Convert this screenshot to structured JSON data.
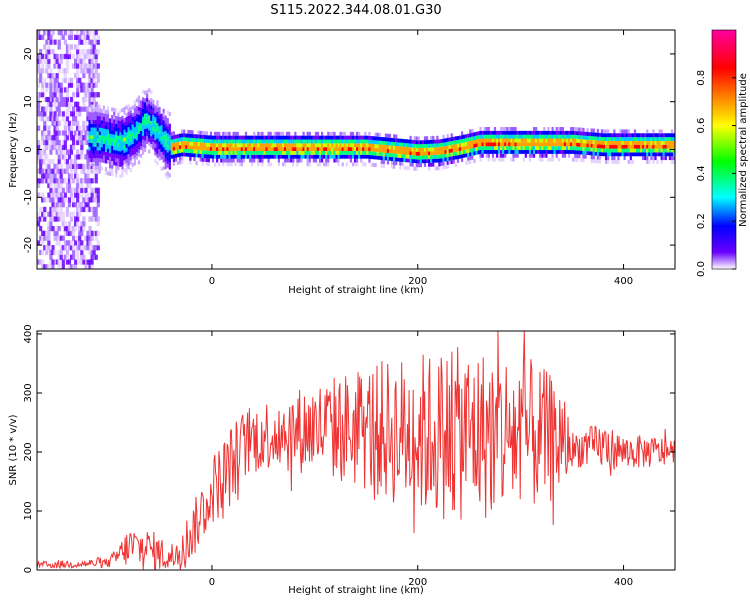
{
  "figure": {
    "title": "S115.2022.344.08.01.G30"
  },
  "chart_data": [
    {
      "type": "heatmap",
      "xlabel": "Height of straight line (km)",
      "ylabel": "Frequency (Hz)",
      "xlim": [
        -170,
        450
      ],
      "ylim": [
        -25,
        25
      ],
      "xticks": [
        0,
        200,
        400
      ],
      "yticks": [
        -20,
        -10,
        0,
        10,
        20
      ],
      "colorbar": {
        "label": "Normalized spectral amplitude",
        "range": [
          0,
          1
        ],
        "ticks": [
          "0.0",
          "0.2",
          "0.4",
          "0.6",
          "0.8"
        ]
      },
      "ridge": {
        "x": [
          -110,
          -90,
          -75,
          -65,
          -55,
          -45,
          -40,
          -30,
          0,
          50,
          100,
          150,
          200,
          220,
          240,
          260,
          300,
          350,
          380,
          420,
          450
        ],
        "frequency": [
          2,
          1,
          3,
          6,
          4,
          1,
          0,
          0.5,
          0,
          0,
          0,
          0,
          -1,
          -0.8,
          0,
          1,
          1,
          1,
          0.5,
          0.5,
          0.5
        ]
      },
      "noise_region_x": [
        -170,
        -110
      ]
    },
    {
      "type": "line",
      "xlabel": "Height of straight line (km)",
      "ylabel": "SNR (10 * v/v)",
      "xlim": [
        -170,
        450
      ],
      "ylim": [
        0,
        405
      ],
      "xticks": [
        0,
        200,
        400
      ],
      "yticks": [
        0,
        100,
        200,
        300,
        400
      ],
      "color": "#ee3333",
      "envelope": {
        "x": [
          -170,
          -100,
          -80,
          -60,
          -40,
          -20,
          0,
          20,
          30,
          50,
          100,
          150,
          200,
          250,
          300,
          340,
          350,
          380,
          400,
          450
        ],
        "mean": [
          8,
          12,
          40,
          35,
          20,
          60,
          135,
          180,
          210,
          230,
          240,
          240,
          230,
          230,
          230,
          220,
          205,
          210,
          200,
          200
        ],
        "spread": [
          6,
          8,
          35,
          35,
          25,
          45,
          60,
          70,
          60,
          60,
          80,
          110,
          140,
          150,
          140,
          100,
          30,
          40,
          30,
          25
        ]
      }
    }
  ]
}
